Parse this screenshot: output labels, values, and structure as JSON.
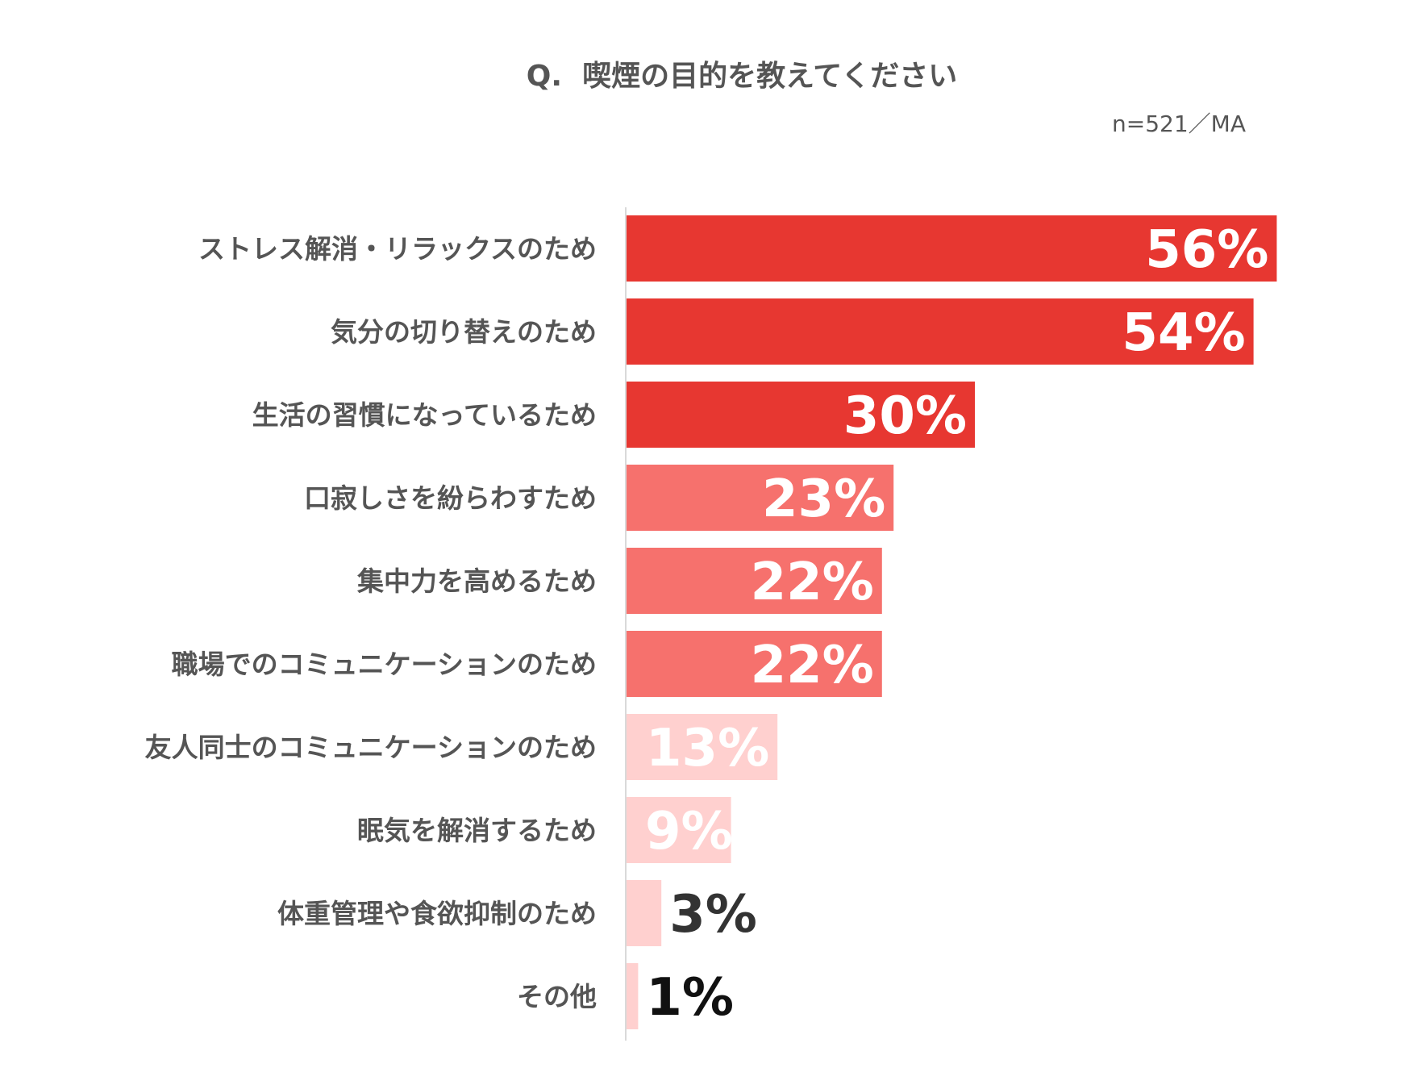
{
  "chart_data": {
    "type": "bar",
    "orientation": "horizontal",
    "title": "Q.  喫煙の目的を教えてください",
    "note": "n=521／MA",
    "xlim": [
      0,
      60
    ],
    "grid": false,
    "categories": [
      "ストレス解消・リラックスのため",
      "気分の切り替えのため",
      "生活の習慣になっているため",
      "口寂しさを紛らわすため",
      "集中力を高めるため",
      "職場でのコミュニケーションのため",
      "友人同士のコミュニケーションのため",
      "眠気を解消するため",
      "体重管理や食欲抑制のため",
      "その他"
    ],
    "values": [
      56,
      54,
      30,
      23,
      22,
      22,
      13,
      9,
      3,
      1
    ],
    "value_labels": [
      "56%",
      "54%",
      "30%",
      "23%",
      "22%",
      "22%",
      "13%",
      "9%",
      "3%",
      "1%"
    ],
    "bar_colors": [
      "#E73731",
      "#E73731",
      "#E73731",
      "#F6716D",
      "#F6716D",
      "#F6716D",
      "#FFD0CF",
      "#FFD0CF",
      "#FFD0CF",
      "#FFD0CF"
    ],
    "label_colors": [
      "#FFFFFF",
      "#FFFFFF",
      "#FFFFFF",
      "#FFFFFF",
      "#FFFFFF",
      "#FFFFFF",
      "#FFFFFF",
      "#FFFFFF",
      "#333333",
      "#111111"
    ]
  }
}
